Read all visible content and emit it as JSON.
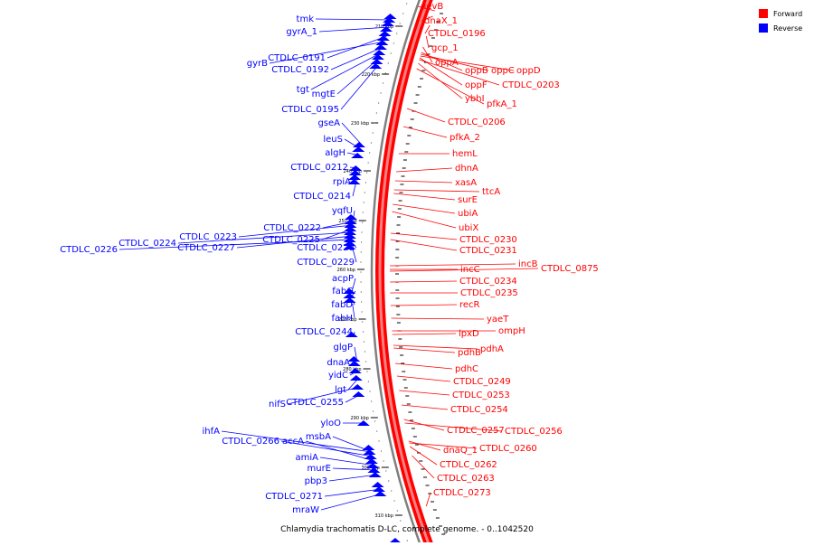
{
  "caption": "Chlamydia trachomatis D-LC, complete genome. - 0..1042520",
  "legend": [
    {
      "label": "Forward",
      "color": "#ff0000"
    },
    {
      "label": "Reverse",
      "color": "#0000ff"
    }
  ],
  "colors": {
    "forward": "#ff0000",
    "reverse": "#0000ff",
    "backbone": "#808080"
  },
  "ticks": [
    "210 kbp",
    "220 kbp",
    "230 kbp",
    "240 kbp",
    "250 kbp",
    "260 kbp",
    "270 kbp",
    "280 kbp",
    "290 kbp",
    "300 kbp",
    "310 kbp"
  ],
  "reverse_labels": [
    "tmk",
    "gyrA_1",
    "CTDLC_0191",
    "gyrB",
    "CTDLC_0192",
    "tgt",
    "mgtE",
    "CTDLC_0195",
    "gseA",
    "leuS",
    "algH",
    "CTDLC_0212",
    "rpiA",
    "CTDLC_0214",
    "yqfU",
    "CTDLC_0222",
    "CTDLC_0223",
    "CTDLC_0225",
    "CTDLC_0224",
    "CTDLC_0227",
    "CTDLC_0226",
    "CTDLC_0228",
    "CTDLC_0229",
    "acpP",
    "fabG",
    "fabD",
    "fabH",
    "CTDLC_0244",
    "glgP",
    "dnaA",
    "yidC",
    "lgt",
    "nifS",
    "CTDLC_0255",
    "yloO",
    "ihfA",
    "msbA",
    "CTDLC_0266",
    "accA",
    "amiA",
    "murE",
    "pbp3",
    "CTDLC_0271",
    "mraW"
  ],
  "forward_labels": [
    "devB",
    "dnaX_1",
    "CTDLC_0196",
    "gcp_1",
    "oppA",
    "oppB",
    "oppC",
    "oppD",
    "oppF",
    "CTDLC_0203",
    "ybhI",
    "pfkA_1",
    "CTDLC_0206",
    "pfkA_2",
    "hemL",
    "dhnA",
    "xasA",
    "ttcA",
    "surE",
    "ubiA",
    "ubiX",
    "CTDLC_0230",
    "CTDLC_0231",
    "incB",
    "incC",
    "CTDLC_0875",
    "CTDLC_0234",
    "CTDLC_0235",
    "recR",
    "yaeT",
    "ompH",
    "lpxD",
    "pdhA",
    "pdhB",
    "pdhC",
    "CTDLC_0249",
    "CTDLC_0253",
    "CTDLC_0254",
    "CTDLC_0257",
    "CTDLC_0256",
    "dnaQ_1",
    "CTDLC_0260",
    "CTDLC_0262",
    "CTDLC_0263",
    "CTDLC_0273"
  ]
}
